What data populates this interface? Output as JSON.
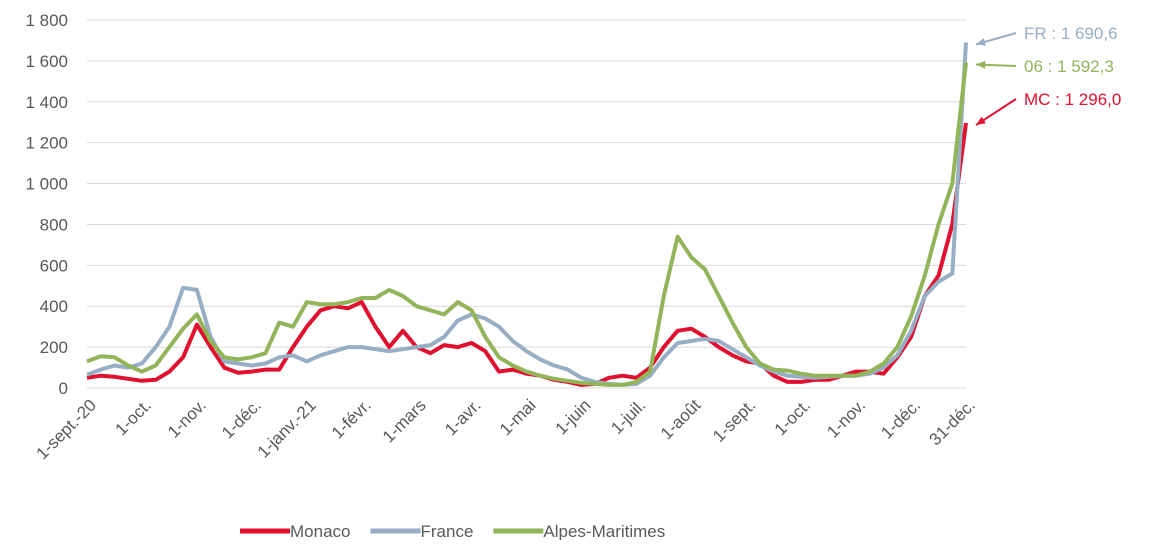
{
  "chart_data": {
    "type": "line",
    "categories": [
      "1-sept.-20",
      null,
      null,
      null,
      "1-oct.",
      null,
      null,
      null,
      "1-nov.",
      null,
      null,
      null,
      "1-déc.",
      null,
      null,
      null,
      "1-janv.-21",
      null,
      null,
      null,
      "1-févr.",
      null,
      null,
      null,
      "1-mars",
      null,
      null,
      null,
      "1-avr.",
      null,
      null,
      null,
      "1-mai",
      null,
      null,
      null,
      "1-juin",
      null,
      null,
      null,
      "1-juil.",
      null,
      null,
      null,
      "1-août",
      null,
      null,
      null,
      "1-sept.",
      null,
      null,
      null,
      "1-oct.",
      null,
      null,
      null,
      "1-nov.",
      null,
      null,
      null,
      "1-déc.",
      null,
      null,
      null,
      "31-déc."
    ],
    "series": [
      {
        "name": "Monaco",
        "color": "#e0102e",
        "end_label": "MC : 1 296,0",
        "values": [
          50,
          60,
          55,
          45,
          35,
          40,
          80,
          150,
          310,
          200,
          100,
          75,
          80,
          90,
          90,
          200,
          300,
          380,
          400,
          390,
          420,
          300,
          200,
          280,
          200,
          170,
          210,
          200,
          220,
          180,
          80,
          90,
          70,
          60,
          40,
          30,
          15,
          20,
          50,
          60,
          50,
          100,
          200,
          280,
          290,
          250,
          200,
          160,
          130,
          120,
          60,
          30,
          30,
          40,
          40,
          60,
          80,
          80,
          70,
          150,
          250,
          450,
          550,
          800,
          1296
        ]
      },
      {
        "name": "France",
        "color": "#97aec4",
        "end_label": "FR : 1 690,6",
        "values": [
          65,
          90,
          110,
          100,
          120,
          200,
          300,
          490,
          480,
          250,
          130,
          120,
          110,
          120,
          150,
          160,
          130,
          160,
          180,
          200,
          200,
          190,
          180,
          190,
          200,
          210,
          250,
          330,
          360,
          340,
          300,
          230,
          180,
          140,
          110,
          90,
          50,
          30,
          20,
          15,
          20,
          60,
          150,
          220,
          230,
          240,
          230,
          190,
          150,
          110,
          80,
          60,
          55,
          50,
          55,
          60,
          60,
          70,
          100,
          160,
          280,
          450,
          520,
          560,
          1690.6
        ]
      },
      {
        "name": "Alpes-Maritimes",
        "color": "#92b55a",
        "end_label": "06 : 1 592,3",
        "values": [
          130,
          155,
          150,
          110,
          80,
          110,
          200,
          290,
          360,
          230,
          150,
          140,
          150,
          170,
          320,
          300,
          420,
          410,
          410,
          420,
          440,
          440,
          480,
          450,
          400,
          380,
          360,
          420,
          380,
          250,
          150,
          110,
          80,
          60,
          45,
          35,
          25,
          20,
          15,
          15,
          30,
          80,
          450,
          740,
          640,
          580,
          450,
          320,
          200,
          120,
          90,
          85,
          70,
          60,
          60,
          60,
          60,
          80,
          120,
          200,
          350,
          550,
          800,
          1000,
          1592.3
        ]
      }
    ],
    "ylim": [
      0,
      1800
    ],
    "yticks": [
      0,
      200,
      400,
      600,
      800,
      {
        "value": 1000,
        "label": "1 000"
      },
      {
        "value": 1200,
        "label": "1 200"
      },
      {
        "value": 1400,
        "label": "1 400"
      },
      {
        "value": 1600,
        "label": "1 600"
      },
      {
        "value": 1800,
        "label": "1 800"
      }
    ],
    "grid": true
  }
}
